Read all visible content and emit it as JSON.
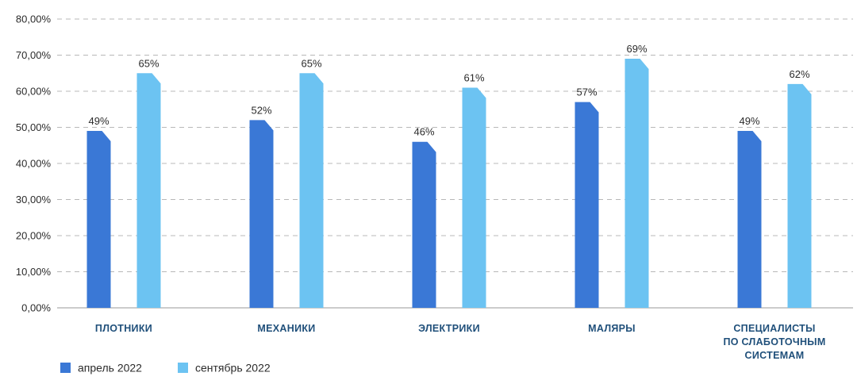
{
  "chart_data": {
    "type": "bar",
    "categories": [
      [
        "ПЛОТНИКИ"
      ],
      [
        "МЕХАНИКИ"
      ],
      [
        "ЭЛЕКТРИКИ"
      ],
      [
        "МАЛЯРЫ"
      ],
      [
        "СПЕЦИАЛИСТЫ",
        "ПО СЛАБОТОЧНЫМ",
        "СИСТЕМАМ"
      ]
    ],
    "series": [
      {
        "name": "апрель 2022",
        "color": "#3a78d6",
        "values": [
          49,
          52,
          46,
          57,
          49
        ],
        "labels": [
          "49%",
          "52%",
          "46%",
          "57%",
          "49%"
        ]
      },
      {
        "name": "сентябрь 2022",
        "color": "#6cc3f2",
        "values": [
          65,
          65,
          61,
          69,
          62
        ],
        "labels": [
          "65%",
          "65%",
          "61%",
          "69%",
          "62%"
        ]
      }
    ],
    "yticks": [
      "0,00%",
      "10,00%",
      "20,00%",
      "30,00%",
      "40,00%",
      "50,00%",
      "60,00%",
      "70,00%",
      "80,00%"
    ],
    "ylim": [
      0,
      80
    ],
    "grid": true,
    "legend": "bottom-left",
    "title": "",
    "xlabel": "",
    "ylabel": ""
  }
}
